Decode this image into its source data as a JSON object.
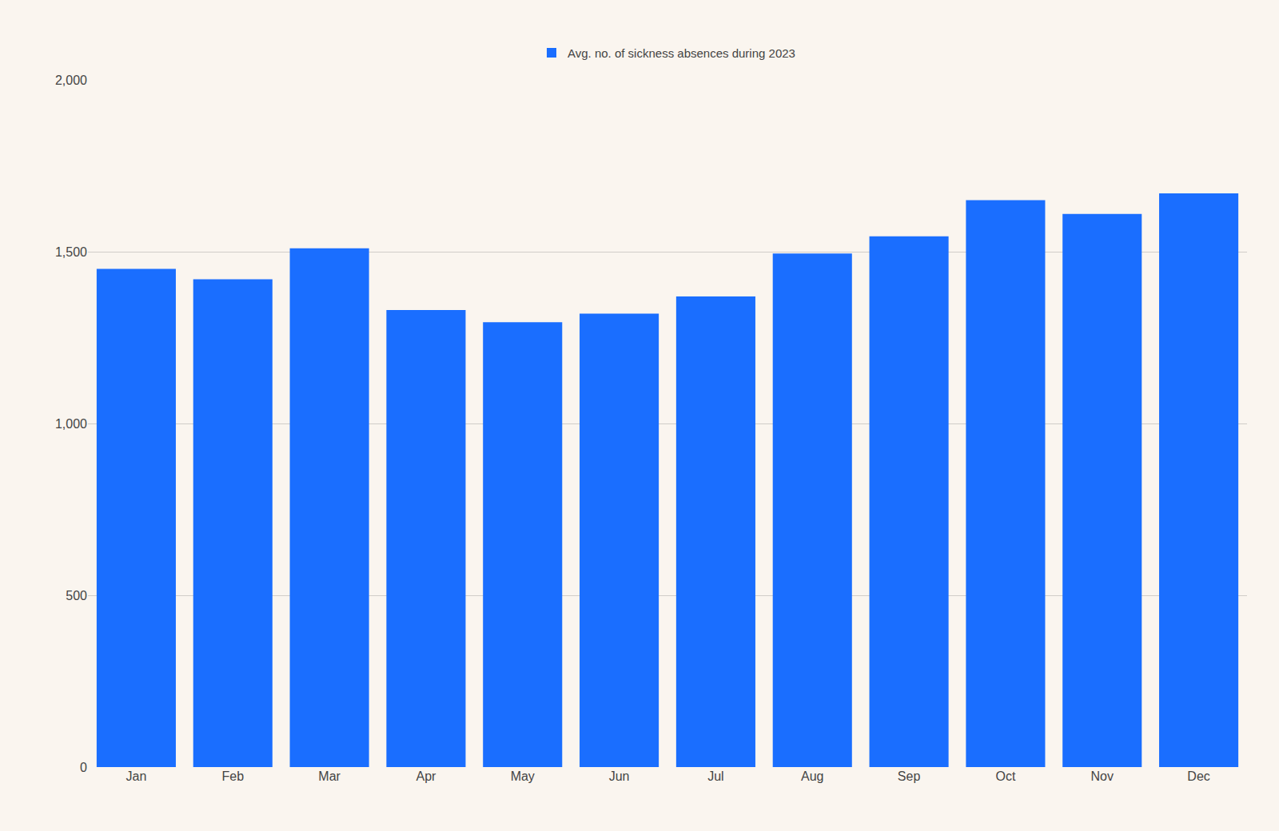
{
  "chart_data": {
    "type": "bar",
    "categories": [
      "Jan",
      "Feb",
      "Mar",
      "Apr",
      "May",
      "Jun",
      "Jul",
      "Aug",
      "Sep",
      "Oct",
      "Nov",
      "Dec"
    ],
    "series": [
      {
        "name": "Avg. no. of sickness absences during 2023",
        "color": "#1a6eff",
        "values": [
          1450,
          1420,
          1510,
          1330,
          1295,
          1320,
          1370,
          1495,
          1545,
          1650,
          1610,
          1670
        ]
      }
    ],
    "ylim": [
      0,
      2000
    ],
    "yticks": [
      0,
      500,
      {
        "value": 1000,
        "label": "1,000"
      },
      {
        "value": 1500,
        "label": "1,500"
      },
      {
        "value": 2000,
        "label": "2,000"
      }
    ],
    "grid": true,
    "legend": "top"
  }
}
